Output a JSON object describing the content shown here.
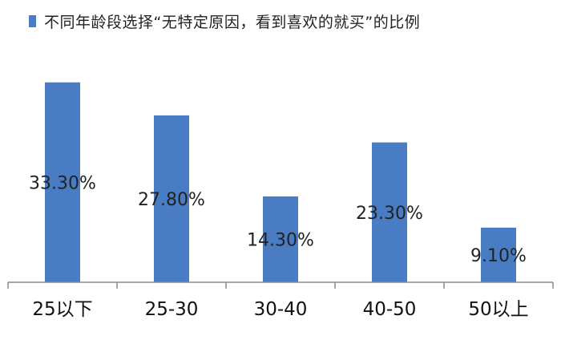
{
  "chart_data": {
    "type": "bar",
    "legend": {
      "label": "不同年龄段选择“无特定原因，看到喜欢的就买”的比例",
      "placement": "top"
    },
    "categories": [
      "25以下",
      "25-30",
      "30-40",
      "40-50",
      "50以上"
    ],
    "series": [
      {
        "name": "不同年龄段选择“无特定原因，看到喜欢的就买”的比例",
        "values": [
          33.3,
          27.8,
          14.3,
          23.3,
          9.1
        ],
        "labels": [
          "33.30%",
          "27.80%",
          "14.30%",
          "23.30%",
          "9.10%"
        ]
      }
    ],
    "ylim": [
      0,
      35
    ],
    "grid": false,
    "colors": {
      "bar": "#4a7cc4",
      "axis": "#8a8a8a"
    }
  }
}
